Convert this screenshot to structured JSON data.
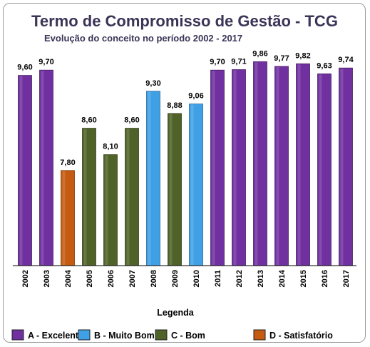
{
  "chart_data": {
    "type": "bar",
    "title": "Termo de Compromisso de Gestão - TCG",
    "subtitle": "Evolução do conceito no período 2002 - 2017",
    "categories": [
      "2002",
      "2003",
      "2004",
      "2005",
      "2006",
      "2007",
      "2008",
      "2009",
      "2010",
      "2011",
      "2012",
      "2013",
      "2014",
      "2015",
      "2016",
      "2017"
    ],
    "values": [
      9.6,
      9.7,
      7.8,
      8.6,
      8.1,
      8.6,
      9.3,
      8.88,
      9.06,
      9.7,
      9.71,
      9.86,
      9.77,
      9.82,
      9.63,
      9.74
    ],
    "value_labels": [
      "9,60",
      "9,70",
      "7,80",
      "8,60",
      "8,10",
      "8,60",
      "9,30",
      "8,88",
      "9,06",
      "9,70",
      "9,71",
      "9,86",
      "9,77",
      "9,82",
      "9,63",
      "9,74"
    ],
    "bar_classes": [
      "A",
      "A",
      "D",
      "C",
      "C",
      "C",
      "B",
      "C",
      "B",
      "A",
      "A",
      "A",
      "A",
      "A",
      "A",
      "A"
    ],
    "ylim": [
      6,
      10
    ],
    "grid": false,
    "xlabel": "",
    "ylabel": "",
    "legend_title": "Legenda",
    "legend_position": "bottom",
    "legend": [
      {
        "key": "A",
        "label": "A - Excelente",
        "color": "#7030a0"
      },
      {
        "key": "B",
        "label": "B - Muito Bom",
        "color": "#3fa0e6"
      },
      {
        "key": "C",
        "label": "C - Bom",
        "color": "#4f6228"
      },
      {
        "key": "D",
        "label": "D - Satisfatório",
        "color": "#c55a11"
      }
    ]
  }
}
